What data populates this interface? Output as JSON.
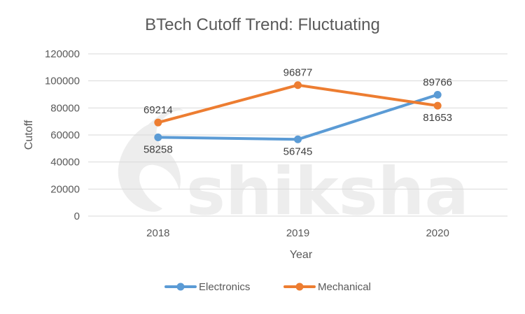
{
  "chart_data": {
    "type": "line",
    "title": "BTech Cutoff Trend: Fluctuating",
    "xlabel": "Year",
    "ylabel": "Cutoff",
    "categories": [
      "2018",
      "2019",
      "2020"
    ],
    "ylim": [
      0,
      120000
    ],
    "yticks": [
      0,
      20000,
      40000,
      60000,
      80000,
      100000,
      120000
    ],
    "grid": true,
    "legend_position": "bottom",
    "series": [
      {
        "name": "Electronics",
        "values": [
          58258,
          56745,
          89766
        ],
        "color": "#5b9bd5",
        "labels": [
          "58258",
          "56745",
          "89766"
        ],
        "label_positions": [
          "below",
          "below",
          "above"
        ]
      },
      {
        "name": "Mechanical",
        "values": [
          69214,
          96877,
          81653
        ],
        "color": "#ed7d31",
        "labels": [
          "69214",
          "96877",
          "81653"
        ],
        "label_positions": [
          "above",
          "above",
          "below"
        ]
      }
    ]
  },
  "watermark": {
    "text": "shiksha"
  }
}
